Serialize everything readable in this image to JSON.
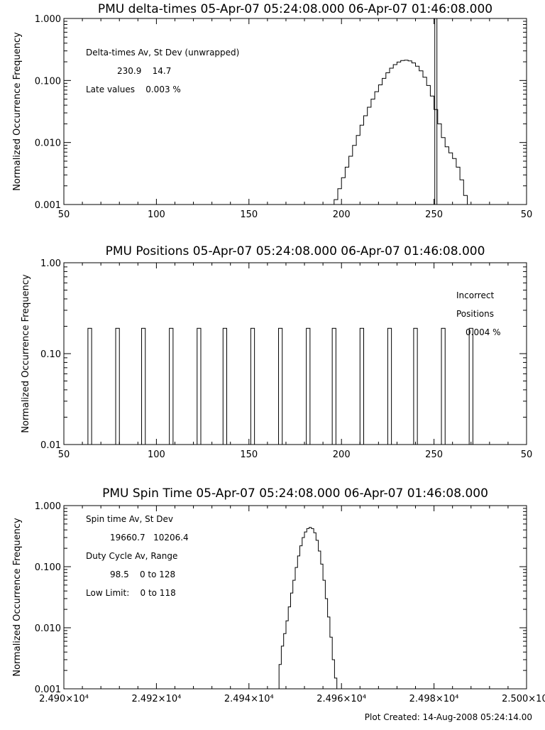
{
  "footer": "Plot Created: 14-Aug-2008 05:24:14.00",
  "chart_data": [
    {
      "type": "histogram",
      "title": "PMU delta-times 05-Apr-07 05:24:08.000 06-Apr-07 01:46:08.000",
      "ylabel": "Normalized Occurrence Frequency",
      "xlim": [
        50,
        300
      ],
      "ylim": [
        0.001,
        1
      ],
      "ylog": true,
      "x_tick_labels": [
        "50",
        "100",
        "150",
        "200",
        "250",
        "50"
      ],
      "y_tick_labels": [
        "0.001",
        "0.010",
        "0.100",
        "1.000"
      ],
      "annotations": [
        "Delta-times Av, St Dev (unwrapped)",
        "230.9    14.7",
        "Late values    0.003 %"
      ],
      "bin_width": 2,
      "bins_start": 196,
      "values": [
        0.0012,
        0.0018,
        0.0027,
        0.004,
        0.006,
        0.009,
        0.013,
        0.019,
        0.027,
        0.037,
        0.05,
        0.066,
        0.085,
        0.108,
        0.133,
        0.158,
        0.18,
        0.198,
        0.21,
        0.213,
        0.207,
        0.192,
        0.17,
        0.143,
        0.113,
        0.083,
        0.056,
        0.034,
        0.02,
        0.012,
        0.0085,
        0.0068,
        0.0055,
        0.004,
        0.0025,
        0.0014
      ],
      "spike": {
        "x": 251,
        "value": 1.0
      }
    },
    {
      "type": "histogram",
      "title": "PMU Positions 05-Apr-07 05:24:08.000 06-Apr-07 01:46:08.000",
      "ylabel": "Normalized Occurrence Frequency",
      "xlim": [
        50,
        300
      ],
      "ylim": [
        0.01,
        1
      ],
      "ylog": true,
      "x_tick_labels": [
        "50",
        "100",
        "150",
        "200",
        "250",
        "50"
      ],
      "y_tick_labels": [
        "0.01",
        "0.10",
        "1.00"
      ],
      "annotations": [
        "Incorrect",
        "Positions",
        "0.004 %"
      ],
      "bar_positions": [
        64,
        79,
        93,
        108,
        123,
        137,
        152,
        167,
        182,
        196,
        211,
        226,
        240,
        255,
        270
      ],
      "bar_value": 0.19,
      "bar_width": 2
    },
    {
      "type": "histogram",
      "title": "PMU Spin Time 05-Apr-07 05:24:08.000 06-Apr-07 01:46:08.000",
      "ylabel": "Normalized Occurrence Frequency",
      "xlim": [
        24900,
        25000
      ],
      "ylim": [
        0.001,
        1
      ],
      "ylog": true,
      "x_tick_labels": [
        "2.490×10⁴",
        "2.492×10⁴",
        "2.494×10⁴",
        "2.496×10⁴",
        "2.498×10⁴",
        "2.500×10⁴"
      ],
      "y_tick_labels": [
        "0.001",
        "0.010",
        "0.100",
        "1.000"
      ],
      "annotations": [
        "Spin time Av, St Dev",
        "19660.7   10206.4",
        "Duty Cycle Av, Range",
        "98.5    0 to 128",
        "Low Limit:    0 to 118"
      ],
      "bin_width": 0.5,
      "bins_start": 24946.5,
      "values": [
        0.0025,
        0.005,
        0.008,
        0.013,
        0.022,
        0.037,
        0.06,
        0.097,
        0.15,
        0.22,
        0.3,
        0.37,
        0.42,
        0.44,
        0.42,
        0.36,
        0.27,
        0.18,
        0.11,
        0.06,
        0.03,
        0.015,
        0.007,
        0.003,
        0.0015
      ]
    }
  ]
}
